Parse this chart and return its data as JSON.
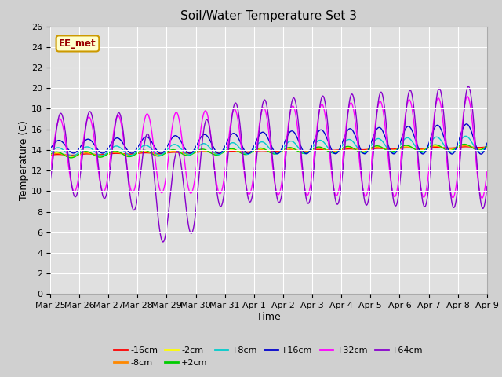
{
  "title": "Soil/Water Temperature Set 3",
  "xlabel": "Time",
  "ylabel": "Temperature (C)",
  "ylim": [
    0,
    26
  ],
  "yticks": [
    0,
    2,
    4,
    6,
    8,
    10,
    12,
    14,
    16,
    18,
    20,
    22,
    24,
    26
  ],
  "annotation_text": "EE_met",
  "annotation_color": "#990000",
  "annotation_bg": "#ffffcc",
  "fig_bg": "#d0d0d0",
  "plot_bg": "#e0e0e0",
  "legend_entries": [
    "-16cm",
    "-8cm",
    "-2cm",
    "+2cm",
    "+8cm",
    "+16cm",
    "+32cm",
    "+64cm"
  ],
  "line_colors": {
    "-16cm": "#ff0000",
    "-8cm": "#ff8800",
    "-2cm": "#ffff00",
    "+2cm": "#00cc00",
    "+8cm": "#00cccc",
    "+16cm": "#0000cc",
    "+32cm": "#ff00ff",
    "+64cm": "#8800cc"
  },
  "n_points": 720,
  "x_start": 0,
  "x_end": 15,
  "x_tick_labels": [
    "Mar 25",
    "Mar 26",
    "Mar 27",
    "Mar 28",
    "Mar 29",
    "Mar 30",
    "Mar 31",
    "Apr 1",
    "Apr 2",
    "Apr 3",
    "Apr 4",
    "Apr 5",
    "Apr 6",
    "Apr 7",
    "Apr 8",
    "Apr 9"
  ],
  "x_tick_positions": [
    0,
    1,
    2,
    3,
    4,
    5,
    6,
    7,
    8,
    9,
    10,
    11,
    12,
    13,
    14,
    15
  ]
}
